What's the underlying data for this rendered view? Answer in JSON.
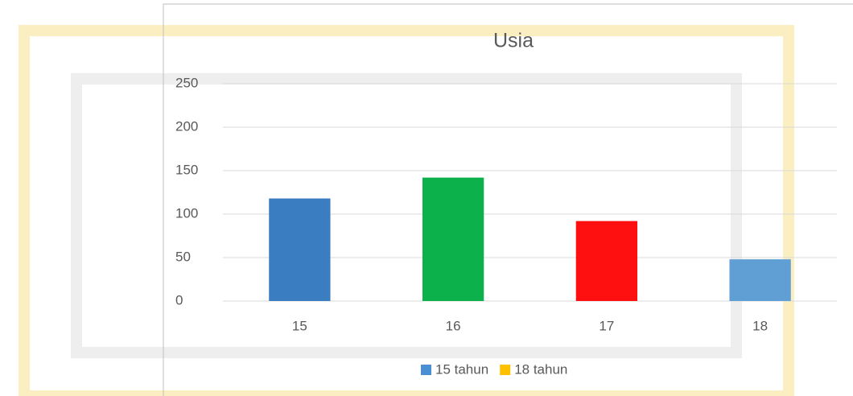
{
  "chart_data": {
    "type": "bar",
    "title": "Usia",
    "categories": [
      "15",
      "16",
      "17",
      "18"
    ],
    "values": [
      118,
      142,
      92,
      48
    ],
    "colors": [
      "#3a7dc0",
      "#0db14b",
      "#ff1010",
      "#5f9fd4"
    ],
    "ylim": [
      0,
      250
    ],
    "yticks": [
      0,
      50,
      100,
      150,
      200,
      250
    ],
    "grid": true,
    "legend": [
      {
        "name": "15 tahun",
        "color": "#4a8fd4"
      },
      {
        "name": "18 tahun",
        "color": "#ffc000"
      }
    ],
    "legend_position": "bottom"
  }
}
